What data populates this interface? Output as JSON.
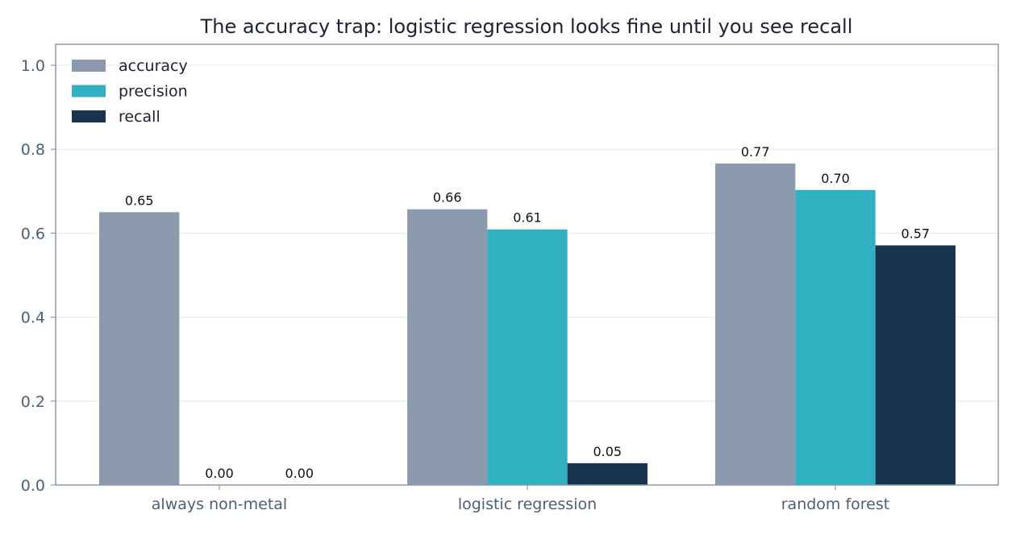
{
  "chart_data": {
    "type": "bar",
    "title": "The accuracy trap: logistic regression looks fine until you see recall",
    "xlabel": "",
    "ylabel": "",
    "ylim": [
      0,
      1.05
    ],
    "y_ticks": [
      "0.0",
      "0.2",
      "0.4",
      "0.6",
      "0.8",
      "1.0"
    ],
    "y_tick_values": [
      0,
      0.2,
      0.4,
      0.6,
      0.8,
      1.0
    ],
    "grid": "horizontal",
    "legend_position": "top-left",
    "categories": [
      "always non-metal",
      "logistic regression",
      "random forest"
    ],
    "series": [
      {
        "name": "accuracy",
        "color": "#8a99ac",
        "values": [
          0.65,
          0.657,
          0.766
        ],
        "labels": [
          "0.65",
          "0.66",
          "0.77"
        ]
      },
      {
        "name": "precision",
        "color": "#30b0c1",
        "values": [
          0.0,
          0.609,
          0.703
        ],
        "labels": [
          "0.00",
          "0.61",
          "0.70"
        ]
      },
      {
        "name": "recall",
        "color": "#19324e",
        "values": [
          0.0,
          0.052,
          0.571
        ],
        "labels": [
          "0.00",
          "0.05",
          "0.57"
        ]
      }
    ]
  },
  "colors": {
    "axes_frame": "#8b9aab",
    "grid": "#e2e8ef",
    "tick_text": "#4a5f78",
    "title_text": "#1b2333",
    "bar_label_text": "#111111"
  }
}
